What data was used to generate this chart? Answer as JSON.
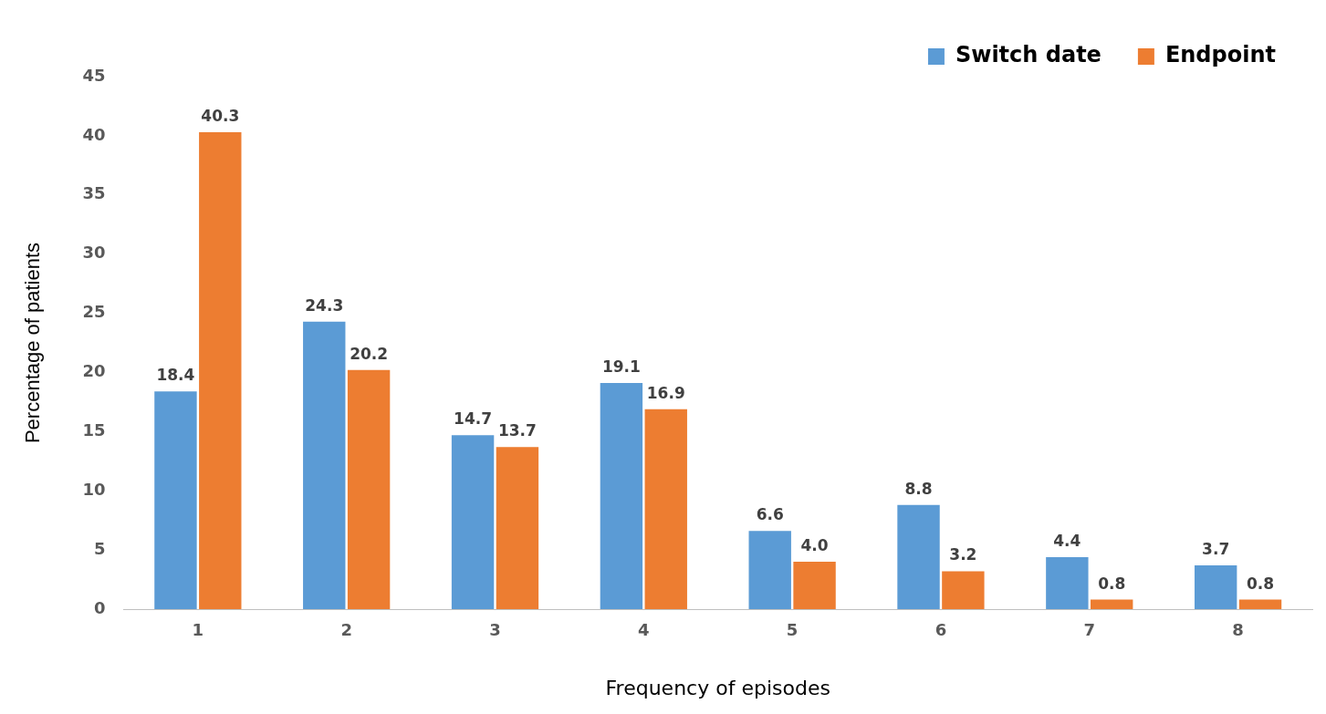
{
  "chart_data": {
    "type": "bar",
    "xlabel": "Frequency of episodes",
    "ylabel": "Percentage of patients",
    "categories": [
      "1",
      "2",
      "3",
      "4",
      "5",
      "6",
      "7",
      "8"
    ],
    "series": [
      {
        "name": "Switch date",
        "color": "#5b9bd5",
        "values": [
          18.4,
          24.3,
          14.7,
          19.1,
          6.6,
          8.8,
          4.4,
          3.7
        ],
        "value_labels": [
          "18.4",
          "24.3",
          "14.7",
          "19.1",
          "6.6",
          "8.8",
          "4.4",
          "3.7"
        ]
      },
      {
        "name": "Endpoint",
        "color": "#ed7d31",
        "values": [
          40.3,
          20.2,
          13.7,
          16.9,
          4.0,
          3.2,
          0.8,
          0.8
        ],
        "value_labels": [
          "40.3",
          "20.2",
          "13.7",
          "16.9",
          "4.0",
          "3.2",
          "0.8",
          "0.8"
        ]
      }
    ],
    "ylim": [
      0,
      45
    ],
    "yticks": [
      0,
      5,
      10,
      15,
      20,
      25,
      30,
      35,
      40,
      45
    ],
    "grid": false,
    "legend": "top right"
  }
}
